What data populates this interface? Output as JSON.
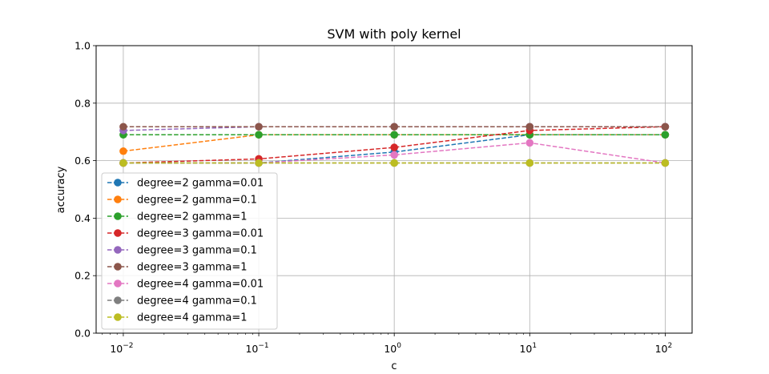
{
  "chart_data": {
    "type": "line",
    "title": "SVM with poly kernel",
    "xlabel": "c",
    "ylabel": "accuracy",
    "xscale": "log",
    "x": [
      0.01,
      0.1,
      1,
      10,
      100
    ],
    "x_tick_labels": [
      {
        "base": "10",
        "exp": "−2"
      },
      {
        "base": "10",
        "exp": "−1"
      },
      {
        "base": "10",
        "exp": "0"
      },
      {
        "base": "10",
        "exp": "1"
      },
      {
        "base": "10",
        "exp": "2"
      }
    ],
    "xlim": [
      0.0063,
      158
    ],
    "ylim": [
      0.0,
      1.0
    ],
    "y_ticks": [
      "0.0",
      "0.2",
      "0.4",
      "0.6",
      "0.8",
      "1.0"
    ],
    "grid": true,
    "legend_position": "lower-left",
    "line_style": "dashed",
    "marker": "circle",
    "series": [
      {
        "name": "degree=2 gamma=0.01",
        "color": "#1f77b4",
        "values": [
          0.592,
          0.592,
          0.63,
          0.69,
          0.69
        ]
      },
      {
        "name": "degree=2 gamma=0.1",
        "color": "#ff7f0e",
        "values": [
          0.633,
          0.69,
          0.69,
          0.69,
          0.69
        ]
      },
      {
        "name": "degree=2 gamma=1",
        "color": "#2ca02c",
        "values": [
          0.69,
          0.69,
          0.69,
          0.69,
          0.69
        ]
      },
      {
        "name": "degree=3 gamma=0.01",
        "color": "#d62728",
        "values": [
          0.592,
          0.606,
          0.646,
          0.705,
          0.718
        ]
      },
      {
        "name": "degree=3 gamma=0.1",
        "color": "#9467bd",
        "values": [
          0.705,
          0.718,
          0.718,
          0.718,
          0.718
        ]
      },
      {
        "name": "degree=3 gamma=1",
        "color": "#8c564b",
        "values": [
          0.718,
          0.718,
          0.718,
          0.718,
          0.718
        ]
      },
      {
        "name": "degree=4 gamma=0.01",
        "color": "#e377c2",
        "values": [
          0.592,
          0.592,
          0.62,
          0.662,
          0.592
        ]
      },
      {
        "name": "degree=4 gamma=0.1",
        "color": "#7f7f7f",
        "values": [
          0.592,
          0.592,
          0.592,
          0.592,
          0.592
        ]
      },
      {
        "name": "degree=4 gamma=1",
        "color": "#bcbd22",
        "values": [
          0.592,
          0.592,
          0.592,
          0.592,
          0.592
        ]
      }
    ]
  }
}
